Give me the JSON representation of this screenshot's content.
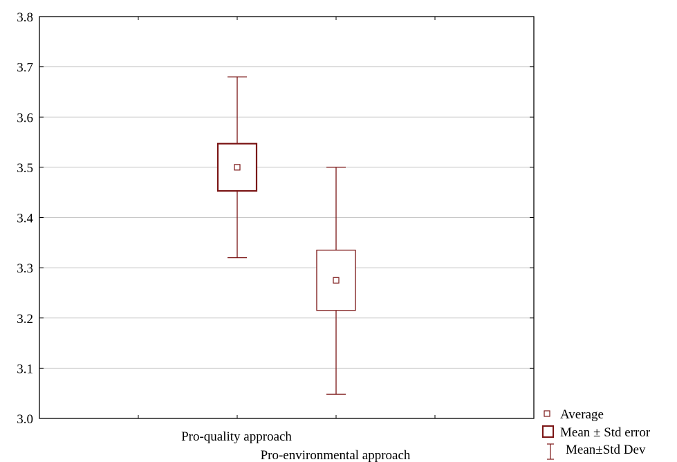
{
  "chart_data": {
    "type": "box",
    "title": "",
    "xlabel": "",
    "ylabel": "",
    "ylim": [
      3.0,
      3.8
    ],
    "yticks": [
      "3.0",
      "3.1",
      "3.2",
      "3.3",
      "3.4",
      "3.5",
      "3.6",
      "3.7",
      "3.8"
    ],
    "grid": true,
    "categories": [
      "Pro-quality approach",
      "Pro-environmental approach"
    ],
    "series": [
      {
        "category": "Pro-quality approach",
        "mean": 3.5,
        "se_low": 3.453,
        "se_high": 3.547,
        "sd_low": 3.32,
        "sd_high": 3.68
      },
      {
        "category": "Pro-environmental approach",
        "mean": 3.275,
        "se_low": 3.215,
        "se_high": 3.335,
        "sd_low": 3.048,
        "sd_high": 3.5
      }
    ],
    "legend": {
      "placement": "bottom-right",
      "entries": [
        "Average",
        "Mean ± Std error",
        "Mean±Std Dev"
      ]
    },
    "colors": {
      "marks": "#7a1414",
      "grid": "#c8c8c8",
      "axis": "#000000"
    }
  }
}
